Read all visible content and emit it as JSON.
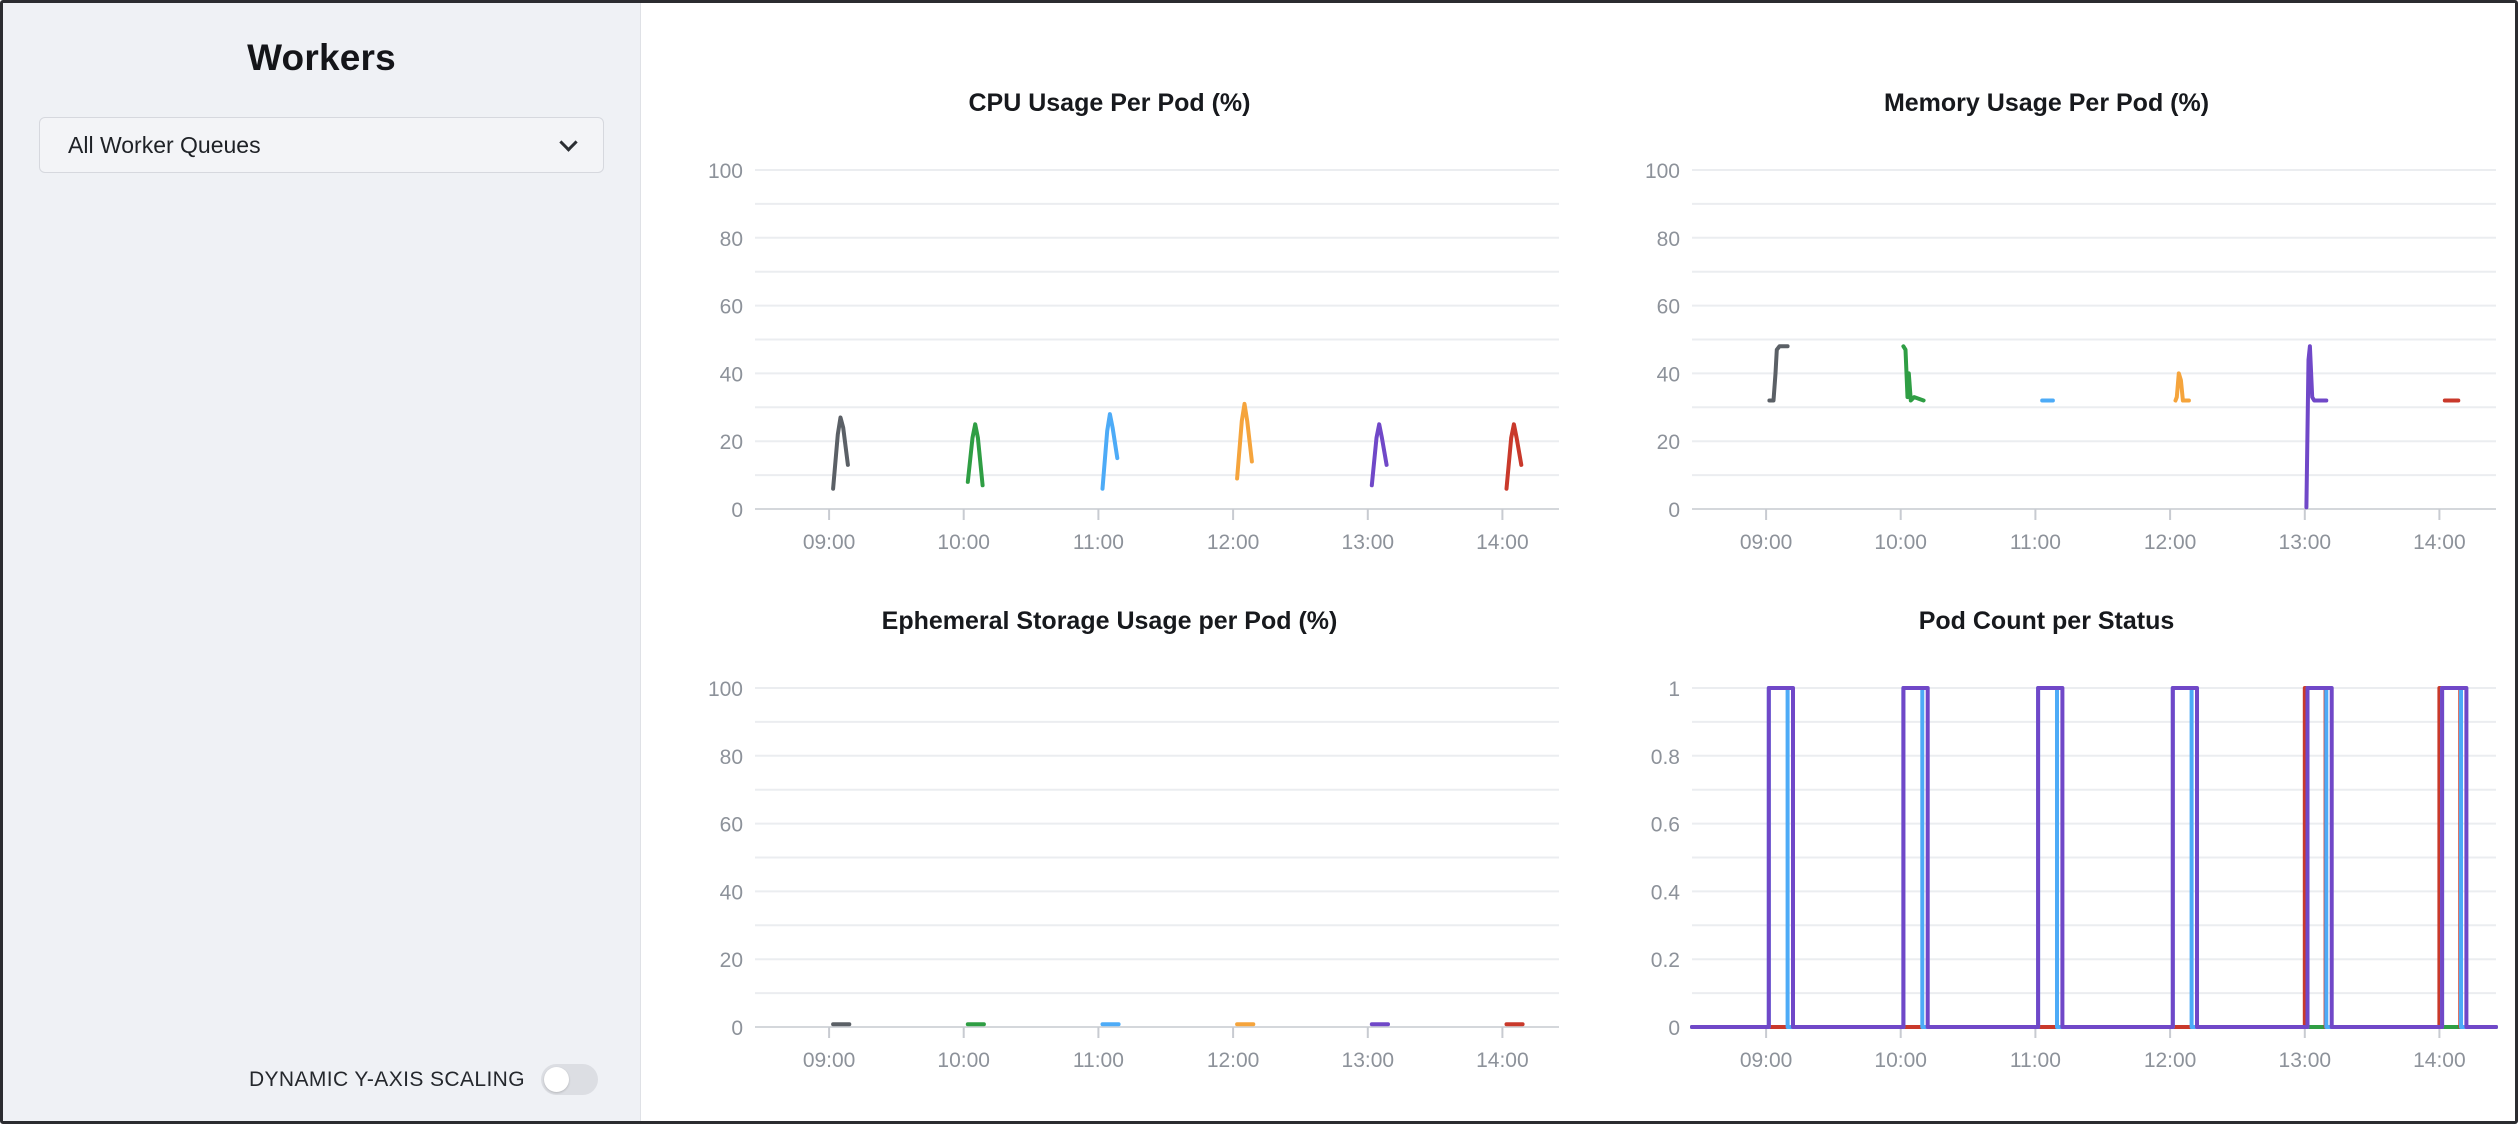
{
  "sidebar": {
    "title": "Workers",
    "queue_dropdown": {
      "value": "All Worker Queues"
    },
    "toggle": {
      "label": "DYNAMIC Y-AXIS SCALING",
      "state": "off"
    }
  },
  "colors": {
    "gray": "#5b6066",
    "green": "#2f9e44",
    "blue": "#4dabf7",
    "orange": "#f5a43c",
    "purple": "#7048c8",
    "red": "#c9392b",
    "grid": "#ebedf0",
    "zero_line": "#d4d7db",
    "tick": "#c8cbd1",
    "axis_text": "#8d929a"
  },
  "chart_data": [
    {
      "type": "line",
      "title": "CPU Usage Per Pod (%)",
      "x_domain": [
        8.45,
        14.42
      ],
      "x_ticks": [
        {
          "v": 9,
          "label": "09:00"
        },
        {
          "v": 10,
          "label": "10:00"
        },
        {
          "v": 11,
          "label": "11:00"
        },
        {
          "v": 12,
          "label": "12:00"
        },
        {
          "v": 13,
          "label": "13:00"
        },
        {
          "v": 14,
          "label": "14:00"
        }
      ],
      "y_grid": [
        0,
        10,
        20,
        30,
        40,
        50,
        60,
        70,
        80,
        90,
        100
      ],
      "y_labels": [
        {
          "v": 0,
          "t": "0"
        },
        {
          "v": 20,
          "t": "20"
        },
        {
          "v": 40,
          "t": "40"
        },
        {
          "v": 60,
          "t": "60"
        },
        {
          "v": 80,
          "t": "80"
        },
        {
          "v": 100,
          "t": "100"
        }
      ],
      "series": [
        {
          "color": "#5b6066",
          "points": [
            [
              9.03,
              6
            ],
            [
              9.065,
              22
            ],
            [
              9.085,
              27
            ],
            [
              9.105,
              24
            ],
            [
              9.14,
              13
            ]
          ]
        },
        {
          "color": "#2f9e44",
          "points": [
            [
              10.03,
              8
            ],
            [
              10.065,
              21
            ],
            [
              10.085,
              25
            ],
            [
              10.105,
              21
            ],
            [
              10.14,
              7
            ]
          ]
        },
        {
          "color": "#4dabf7",
          "points": [
            [
              11.03,
              6
            ],
            [
              11.065,
              23
            ],
            [
              11.085,
              28
            ],
            [
              11.105,
              24
            ],
            [
              11.14,
              15
            ]
          ]
        },
        {
          "color": "#f5a43c",
          "points": [
            [
              12.03,
              9
            ],
            [
              12.065,
              26
            ],
            [
              12.085,
              31
            ],
            [
              12.105,
              26
            ],
            [
              12.14,
              14
            ]
          ]
        },
        {
          "color": "#7048c8",
          "points": [
            [
              13.03,
              7
            ],
            [
              13.065,
              21
            ],
            [
              13.085,
              25
            ],
            [
              13.105,
              21
            ],
            [
              13.14,
              13
            ]
          ]
        },
        {
          "color": "#c9392b",
          "points": [
            [
              14.03,
              6
            ],
            [
              14.065,
              21
            ],
            [
              14.085,
              25
            ],
            [
              14.105,
              21
            ],
            [
              14.14,
              13
            ]
          ]
        }
      ]
    },
    {
      "type": "line",
      "title": "Memory Usage Per Pod (%)",
      "x_domain": [
        8.45,
        14.42
      ],
      "x_ticks": [
        {
          "v": 9,
          "label": "09:00"
        },
        {
          "v": 10,
          "label": "10:00"
        },
        {
          "v": 11,
          "label": "11:00"
        },
        {
          "v": 12,
          "label": "12:00"
        },
        {
          "v": 13,
          "label": "13:00"
        },
        {
          "v": 14,
          "label": "14:00"
        }
      ],
      "y_grid": [
        0,
        10,
        20,
        30,
        40,
        50,
        60,
        70,
        80,
        90,
        100
      ],
      "y_labels": [
        {
          "v": 0,
          "t": "0"
        },
        {
          "v": 20,
          "t": "20"
        },
        {
          "v": 40,
          "t": "40"
        },
        {
          "v": 60,
          "t": "60"
        },
        {
          "v": 80,
          "t": "80"
        },
        {
          "v": 100,
          "t": "100"
        }
      ],
      "series": [
        {
          "color": "#5b6066",
          "points": [
            [
              9.025,
              32
            ],
            [
              9.055,
              32
            ],
            [
              9.07,
              40
            ],
            [
              9.08,
              47
            ],
            [
              9.1,
              48
            ],
            [
              9.16,
              48
            ]
          ]
        },
        {
          "color": "#2f9e44",
          "points": [
            [
              10.02,
              48
            ],
            [
              10.035,
              47
            ],
            [
              10.05,
              33
            ],
            [
              10.06,
              40
            ],
            [
              10.075,
              32
            ],
            [
              10.1,
              33
            ],
            [
              10.17,
              32
            ]
          ]
        },
        {
          "color": "#4dabf7",
          "points": [
            [
              11.05,
              32
            ],
            [
              11.13,
              32
            ]
          ]
        },
        {
          "color": "#f5a43c",
          "points": [
            [
              12.04,
              32
            ],
            [
              12.05,
              33
            ],
            [
              12.065,
              40
            ],
            [
              12.08,
              38
            ],
            [
              12.095,
              32
            ],
            [
              12.14,
              32
            ]
          ]
        },
        {
          "color": "#7048c8",
          "points": [
            [
              13.012,
              0.5
            ],
            [
              13.028,
              44
            ],
            [
              13.038,
              48
            ],
            [
              13.055,
              33
            ],
            [
              13.07,
              32
            ],
            [
              13.16,
              32
            ]
          ]
        },
        {
          "color": "#c9392b",
          "points": [
            [
              14.04,
              32
            ],
            [
              14.14,
              32
            ]
          ]
        }
      ]
    },
    {
      "type": "line",
      "title": "Ephemeral Storage Usage per Pod (%)",
      "x_domain": [
        8.45,
        14.42
      ],
      "x_ticks": [
        {
          "v": 9,
          "label": "09:00"
        },
        {
          "v": 10,
          "label": "10:00"
        },
        {
          "v": 11,
          "label": "11:00"
        },
        {
          "v": 12,
          "label": "12:00"
        },
        {
          "v": 13,
          "label": "13:00"
        },
        {
          "v": 14,
          "label": "14:00"
        }
      ],
      "y_grid": [
        0,
        10,
        20,
        30,
        40,
        50,
        60,
        70,
        80,
        90,
        100
      ],
      "y_labels": [
        {
          "v": 0,
          "t": "0"
        },
        {
          "v": 20,
          "t": "20"
        },
        {
          "v": 40,
          "t": "40"
        },
        {
          "v": 60,
          "t": "60"
        },
        {
          "v": 80,
          "t": "80"
        },
        {
          "v": 100,
          "t": "100"
        }
      ],
      "series": [
        {
          "color": "#5b6066",
          "points": [
            [
              9.03,
              0.8
            ],
            [
              9.15,
              0.8
            ]
          ]
        },
        {
          "color": "#2f9e44",
          "points": [
            [
              10.03,
              0.8
            ],
            [
              10.15,
              0.8
            ]
          ]
        },
        {
          "color": "#4dabf7",
          "points": [
            [
              11.03,
              0.8
            ],
            [
              11.15,
              0.8
            ]
          ]
        },
        {
          "color": "#f5a43c",
          "points": [
            [
              12.03,
              0.8
            ],
            [
              12.15,
              0.8
            ]
          ]
        },
        {
          "color": "#7048c8",
          "points": [
            [
              13.03,
              0.8
            ],
            [
              13.15,
              0.8
            ]
          ]
        },
        {
          "color": "#c9392b",
          "points": [
            [
              14.03,
              0.8
            ],
            [
              14.15,
              0.8
            ]
          ]
        }
      ]
    },
    {
      "type": "line",
      "title": "Pod Count per Status",
      "x_domain": [
        8.45,
        14.42
      ],
      "x_ticks": [
        {
          "v": 9,
          "label": "09:00"
        },
        {
          "v": 10,
          "label": "10:00"
        },
        {
          "v": 11,
          "label": "11:00"
        },
        {
          "v": 12,
          "label": "12:00"
        },
        {
          "v": 13,
          "label": "13:00"
        },
        {
          "v": 14,
          "label": "14:00"
        }
      ],
      "y_grid": [
        0,
        0.1,
        0.2,
        0.3,
        0.4,
        0.5,
        0.6,
        0.7,
        0.8,
        0.9,
        1
      ],
      "y_labels": [
        {
          "v": 0,
          "t": "0"
        },
        {
          "v": 0.2,
          "t": "0.2"
        },
        {
          "v": 0.4,
          "t": "0.4"
        },
        {
          "v": 0.6,
          "t": "0.6"
        },
        {
          "v": 0.8,
          "t": "0.8"
        },
        {
          "v": 1,
          "t": "1"
        }
      ],
      "series": [
        {
          "color": "#2f9e44",
          "points": [
            [
              8.45,
              0
            ],
            [
              14.42,
              0
            ]
          ]
        },
        {
          "color": "#c9392b",
          "points": [
            [
              8.45,
              0
            ],
            [
              13.0,
              0
            ],
            [
              13.0,
              1
            ],
            [
              13.155,
              1
            ],
            [
              13.155,
              0
            ],
            [
              14.0,
              0
            ],
            [
              14.0,
              1
            ],
            [
              14.155,
              1
            ],
            [
              14.155,
              0
            ],
            [
              14.42,
              0
            ]
          ]
        },
        {
          "color": "#4dabf7",
          "points": [
            [
              8.45,
              0
            ],
            [
              9.02,
              0
            ],
            [
              9.02,
              1
            ],
            [
              9.16,
              1
            ],
            [
              9.16,
              0
            ],
            [
              10.02,
              0
            ],
            [
              10.02,
              1
            ],
            [
              10.16,
              1
            ],
            [
              10.16,
              0
            ],
            [
              11.02,
              0
            ],
            [
              11.02,
              1
            ],
            [
              11.16,
              1
            ],
            [
              11.16,
              0
            ],
            [
              12.02,
              0
            ],
            [
              12.02,
              1
            ],
            [
              12.16,
              1
            ],
            [
              12.16,
              0
            ],
            [
              13.02,
              0
            ],
            [
              13.02,
              1
            ],
            [
              13.16,
              1
            ],
            [
              13.16,
              0
            ],
            [
              14.02,
              0
            ],
            [
              14.02,
              1
            ],
            [
              14.16,
              1
            ],
            [
              14.16,
              0
            ],
            [
              14.42,
              0
            ]
          ]
        },
        {
          "color": "#7048c8",
          "points": [
            [
              8.45,
              0
            ],
            [
              9.02,
              0
            ],
            [
              9.02,
              1
            ],
            [
              9.2,
              1
            ],
            [
              9.2,
              0
            ],
            [
              10.02,
              0
            ],
            [
              10.02,
              1
            ],
            [
              10.2,
              1
            ],
            [
              10.2,
              0
            ],
            [
              11.02,
              0
            ],
            [
              11.02,
              1
            ],
            [
              11.2,
              1
            ],
            [
              11.2,
              0
            ],
            [
              12.02,
              0
            ],
            [
              12.02,
              1
            ],
            [
              12.2,
              1
            ],
            [
              12.2,
              0
            ],
            [
              13.02,
              0
            ],
            [
              13.02,
              1
            ],
            [
              13.2,
              1
            ],
            [
              13.2,
              0
            ],
            [
              14.02,
              0
            ],
            [
              14.02,
              1
            ],
            [
              14.2,
              1
            ],
            [
              14.2,
              0
            ],
            [
              14.42,
              0
            ]
          ]
        }
      ]
    }
  ]
}
